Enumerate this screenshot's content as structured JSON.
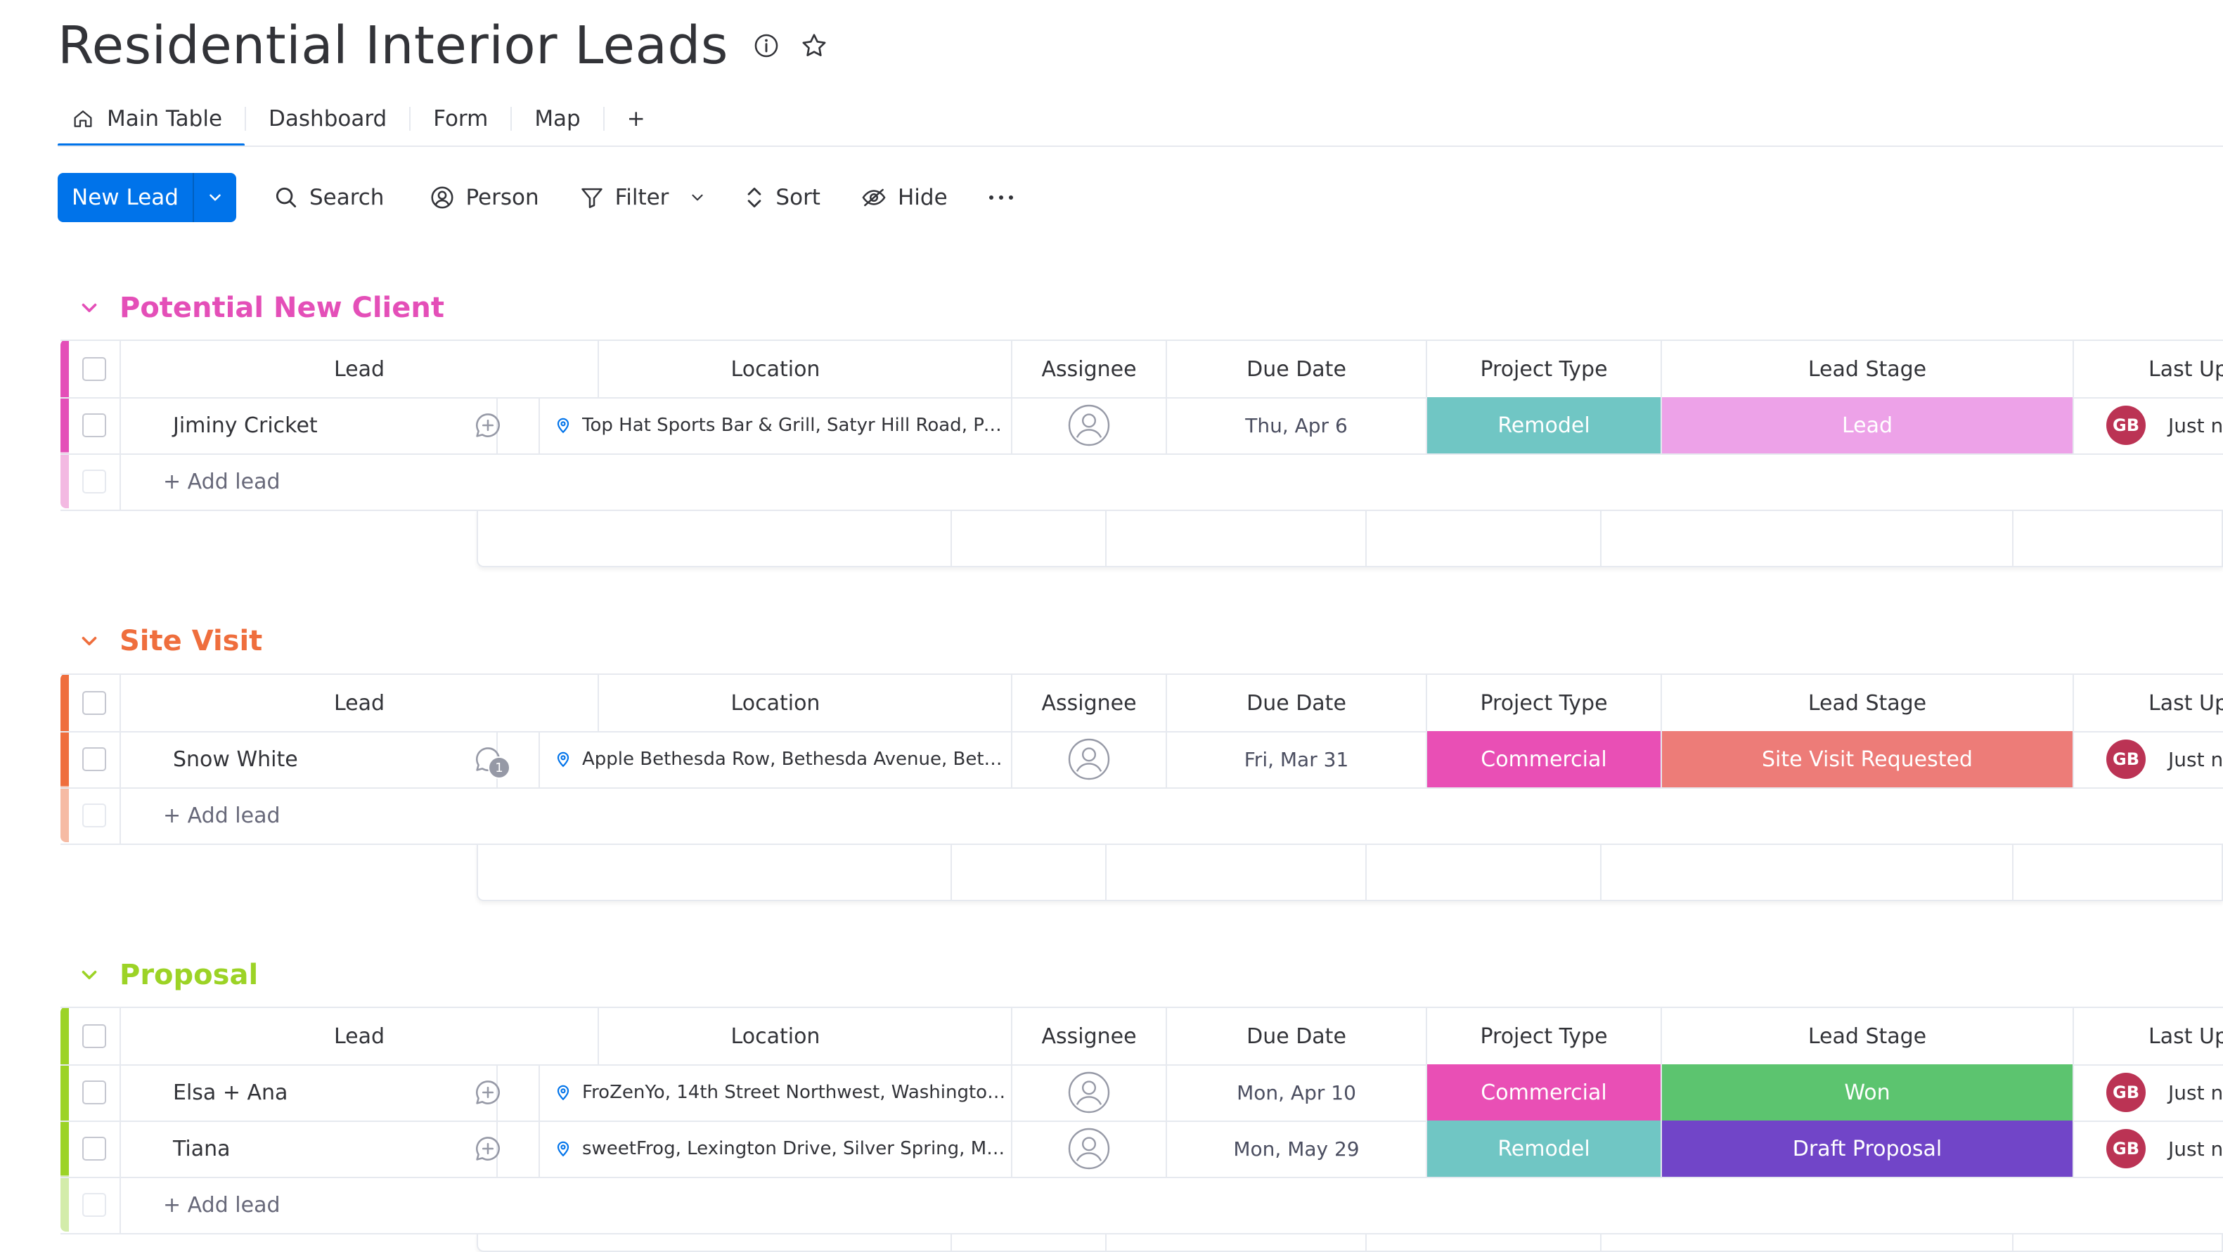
{
  "board": {
    "title": "Residential Interior Leads"
  },
  "tabs": [
    {
      "label": "Main Table"
    },
    {
      "label": "Dashboard"
    },
    {
      "label": "Form"
    },
    {
      "label": "Map"
    },
    {
      "label": "+"
    }
  ],
  "toolbar": {
    "new_label": "New Lead",
    "search": "Search",
    "person": "Person",
    "filter": "Filter",
    "sort": "Sort",
    "hide": "Hide"
  },
  "columns": {
    "lead": "Lead",
    "location": "Location",
    "assignee": "Assignee",
    "due": "Due Date",
    "project_type": "Project Type",
    "lead_stage": "Lead Stage",
    "last_updated": "Last Up"
  },
  "add_lead_label": "+ Add lead",
  "colors": {
    "accent": "#0073ea",
    "group1": "#e44fb8",
    "group2": "#ef6e3d",
    "group3": "#9cd326",
    "remodel": "#70c6c4",
    "commercial": "#e94fb5",
    "lead": "#eda2e8",
    "site_visit": "#ed7c78",
    "won": "#5cc46f",
    "draft": "#7145c8",
    "avatar": "#bb3354"
  },
  "groups": [
    {
      "title": "Potential New Client",
      "rows": [
        {
          "name": "Jiminy Cricket",
          "location": "Top Hat Sports Bar & Grill, Satyr Hill Road, Park...",
          "due": "Thu, Apr 6",
          "project_type": "Remodel",
          "lead_stage": "Lead",
          "avatar": "GB",
          "updated": "Just nov"
        }
      ]
    },
    {
      "title": "Site Visit",
      "rows": [
        {
          "name": "Snow White",
          "location": "Apple Bethesda Row, Bethesda Avenue, Bethe...",
          "due": "Fri, Mar 31",
          "project_type": "Commercial",
          "lead_stage": "Site Visit Requested",
          "avatar": "GB",
          "updated": "Just nov",
          "updates_count": "1"
        }
      ]
    },
    {
      "title": "Proposal",
      "rows": [
        {
          "name": "Elsa + Ana",
          "location": "FroZenYo, 14th Street Northwest, Washington,...",
          "due": "Mon, Apr 10",
          "project_type": "Commercial",
          "lead_stage": "Won",
          "avatar": "GB",
          "updated": "Just nov"
        },
        {
          "name": "Tiana",
          "location": "sweetFrog, Lexington Drive, Silver Spring, MD, ...",
          "due": "Mon, May 29",
          "project_type": "Remodel",
          "lead_stage": "Draft Proposal",
          "avatar": "GB",
          "updated": "Just nov"
        }
      ]
    }
  ]
}
